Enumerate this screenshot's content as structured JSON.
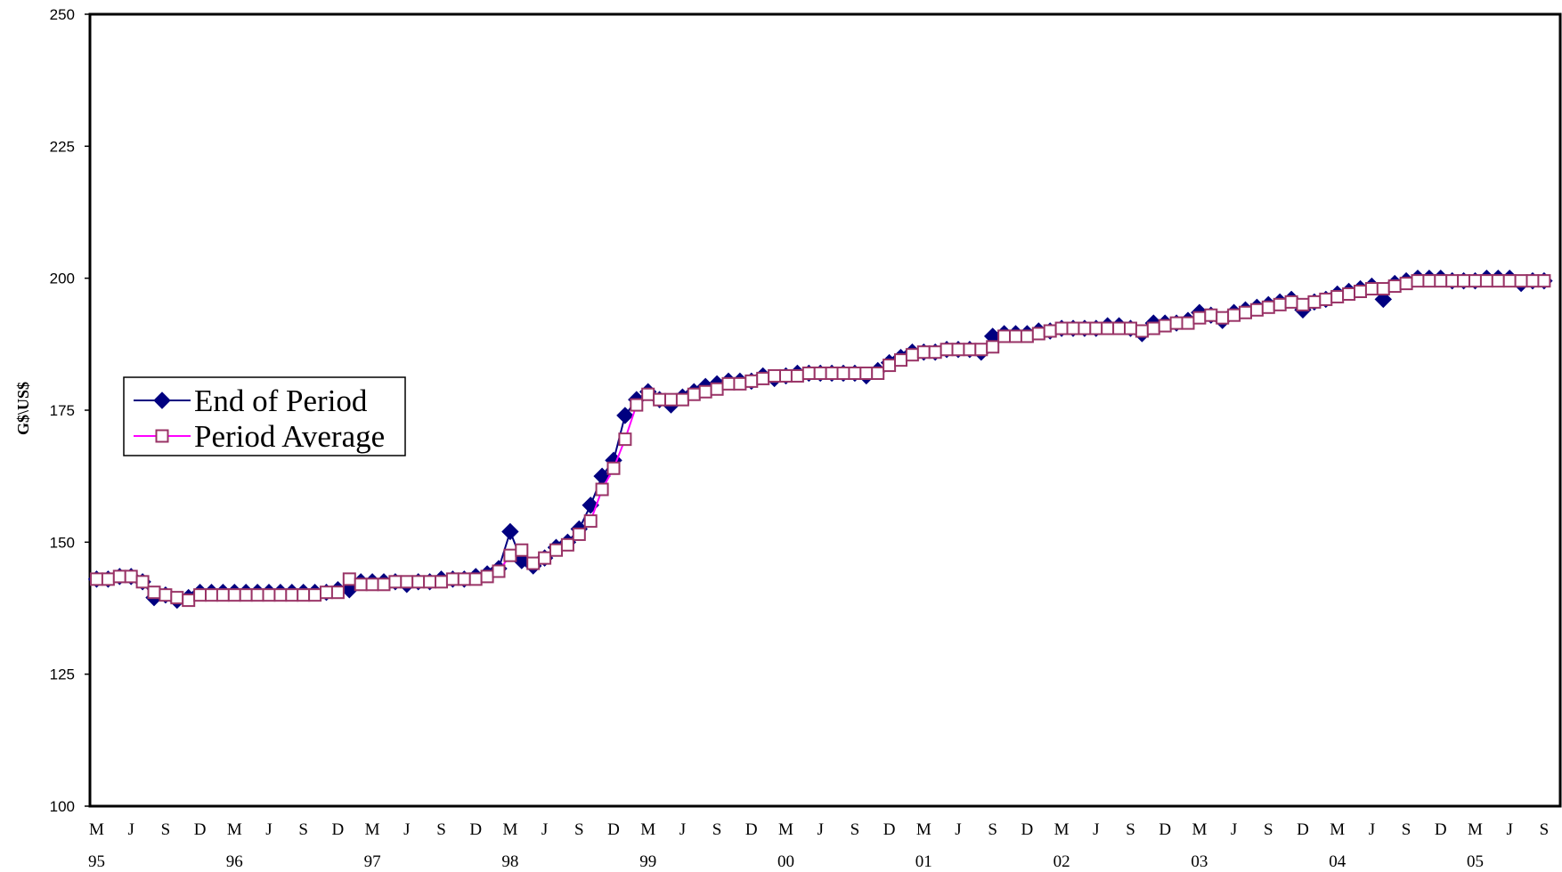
{
  "chart_data": {
    "type": "line",
    "y_label": "G$\\US$",
    "categories": [
      "M",
      null,
      null,
      "J",
      null,
      null,
      "S",
      null,
      null,
      "D",
      null,
      null,
      "M",
      null,
      null,
      "J",
      null,
      null,
      "S",
      null,
      null,
      "D",
      null,
      null,
      "M",
      null,
      null,
      "J",
      null,
      null,
      "S",
      null,
      null,
      "D",
      null,
      null,
      "M",
      null,
      null,
      "J",
      null,
      null,
      "S",
      null,
      null,
      "D",
      null,
      null,
      "M",
      null,
      null,
      "J",
      null,
      null,
      "S",
      null,
      null,
      "D",
      null,
      null,
      "M",
      null,
      null,
      "J",
      null,
      null,
      "S",
      null,
      null,
      "D",
      null,
      null,
      "M",
      null,
      null,
      "J",
      null,
      null,
      "S",
      null,
      null,
      "D",
      null,
      null,
      "M",
      null,
      null,
      "J",
      null,
      null,
      "S",
      null,
      null,
      "D",
      null,
      null,
      "M",
      null,
      null,
      "J",
      null,
      null,
      "S",
      null,
      null,
      "D",
      null,
      null,
      "M",
      null,
      null,
      "J",
      null,
      null,
      "S",
      null,
      null,
      "D",
      null,
      null,
      "M",
      null,
      null,
      "J",
      null,
      null,
      "S"
    ],
    "years": [
      "95",
      null,
      null,
      null,
      null,
      null,
      null,
      null,
      null,
      null,
      null,
      null,
      "96",
      null,
      null,
      null,
      null,
      null,
      null,
      null,
      null,
      null,
      null,
      null,
      "97",
      null,
      null,
      null,
      null,
      null,
      null,
      null,
      null,
      null,
      null,
      null,
      "98",
      null,
      null,
      null,
      null,
      null,
      null,
      null,
      null,
      null,
      null,
      null,
      "99",
      null,
      null,
      null,
      null,
      null,
      null,
      null,
      null,
      null,
      null,
      null,
      "00",
      null,
      null,
      null,
      null,
      null,
      null,
      null,
      null,
      null,
      null,
      null,
      "01",
      null,
      null,
      null,
      null,
      null,
      null,
      null,
      null,
      null,
      null,
      null,
      "02",
      null,
      null,
      null,
      null,
      null,
      null,
      null,
      null,
      null,
      null,
      null,
      "03",
      null,
      null,
      null,
      null,
      null,
      null,
      null,
      null,
      null,
      null,
      null,
      "04",
      null,
      null,
      null,
      null,
      null,
      null,
      null,
      null,
      null,
      null,
      null,
      "05",
      null,
      null,
      null,
      null,
      null,
      null
    ],
    "series": [
      {
        "name": "End of Period",
        "color": "#000080",
        "marker": "diamond",
        "values": [
          143,
          143,
          143.5,
          143.5,
          142.5,
          139.5,
          140,
          139,
          139.5,
          140.5,
          140.5,
          140.5,
          140.5,
          140.5,
          140.5,
          140.5,
          140.5,
          140.5,
          140.5,
          140.5,
          140.5,
          141,
          141,
          142.5,
          142.5,
          142.5,
          142.5,
          142,
          142.5,
          142.5,
          143,
          143,
          143,
          143.5,
          144,
          145,
          152,
          146.5,
          145.5,
          147,
          149,
          150,
          152.5,
          157,
          162.5,
          165.5,
          174,
          177,
          178.5,
          177,
          176,
          177.5,
          178.5,
          179.5,
          180,
          180.5,
          180.5,
          180.5,
          181.5,
          181,
          181.5,
          182,
          182,
          182,
          182,
          182,
          182,
          181.5,
          182.5,
          184,
          185,
          186,
          186,
          186,
          186.5,
          186.5,
          186.5,
          186,
          189,
          189.5,
          189.5,
          189.5,
          190,
          190,
          190.5,
          190.5,
          190.5,
          190.5,
          191,
          191,
          190.5,
          189.5,
          191.5,
          191.5,
          191.5,
          192,
          193.5,
          193,
          192,
          193.5,
          194,
          194.5,
          195,
          195.5,
          196,
          194,
          195.5,
          196,
          197,
          197.5,
          198,
          198.5,
          196,
          199,
          199.5,
          200,
          200,
          200,
          199.5,
          199.5,
          199.5,
          200,
          200,
          200,
          199,
          199.5,
          199.5
        ]
      },
      {
        "name": "Period Average",
        "color": "#ff00ff",
        "marker": "square",
        "marker_color": "#993366",
        "values": [
          143,
          143,
          143.5,
          143.5,
          142.5,
          140.5,
          140,
          139.5,
          139,
          140,
          140,
          140,
          140,
          140,
          140,
          140,
          140,
          140,
          140,
          140,
          140.5,
          140.5,
          143,
          142,
          142,
          142,
          142.5,
          142.5,
          142.5,
          142.5,
          142.5,
          143,
          143,
          143,
          143.5,
          144.5,
          147.5,
          148.5,
          146,
          147,
          148.5,
          149.5,
          151.5,
          154,
          160,
          164,
          169.5,
          176,
          178,
          177,
          177,
          177,
          178,
          178.5,
          179,
          180,
          180,
          180.5,
          181,
          181.5,
          181.5,
          181.5,
          182,
          182,
          182,
          182,
          182,
          182,
          182,
          183.5,
          184.5,
          185.5,
          186,
          186,
          186.5,
          186.5,
          186.5,
          186.5,
          187,
          189,
          189,
          189,
          189.5,
          190,
          190.5,
          190.5,
          190.5,
          190.5,
          190.5,
          190.5,
          190.5,
          190,
          190.5,
          191,
          191.5,
          191.5,
          192.5,
          193,
          192.5,
          193,
          193.5,
          194,
          194.5,
          195,
          195.5,
          195,
          195.5,
          196,
          196.5,
          197,
          197.5,
          198,
          198,
          198.5,
          199,
          199.5,
          199.5,
          199.5,
          199.5,
          199.5,
          199.5,
          199.5,
          199.5,
          199.5,
          199.5,
          199.5,
          199.5
        ]
      }
    ],
    "ylim": [
      100,
      250
    ],
    "yticks": [
      100,
      125,
      150,
      175,
      200,
      225,
      250
    ]
  }
}
